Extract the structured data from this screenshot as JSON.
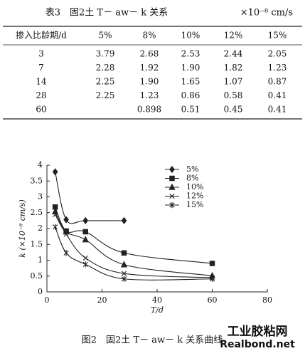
{
  "table": {
    "title": "表3　固2土 T－ aw－ k 关系",
    "unit": "×10⁻⁸ cm/s",
    "header": [
      "掺入比龄期/d",
      "5%",
      "8%",
      "10%",
      "12%",
      "15%"
    ],
    "rows": [
      [
        "3",
        "3.79",
        "2.68",
        "2.53",
        "2.44",
        "2.05"
      ],
      [
        "7",
        "2.28",
        "1.92",
        "1.90",
        "1.82",
        "1.23"
      ],
      [
        "14",
        "2.25",
        "1.90",
        "1.65",
        "1.07",
        "0.87"
      ],
      [
        "28",
        "2.25",
        "1.23",
        "0.86",
        "0.58",
        "0.41"
      ],
      [
        "60",
        null,
        "0.898",
        "0.51",
        "0.45",
        "0.41"
      ]
    ]
  },
  "chart_data": {
    "type": "line",
    "x_label": "T/d",
    "y_label": "k (×10⁻⁸ cm/s)",
    "x": [
      3,
      7,
      14,
      28,
      60
    ],
    "xlim": [
      0,
      80
    ],
    "xticks": [
      0,
      20,
      40,
      60,
      80
    ],
    "ylim": [
      0,
      4
    ],
    "yticks": [
      0,
      0.5,
      1,
      1.5,
      2,
      2.5,
      3,
      3.5,
      4
    ],
    "series": [
      {
        "name": "5%",
        "marker": "diamond",
        "color": "#222222",
        "values": [
          3.79,
          2.28,
          2.25,
          2.25,
          null
        ]
      },
      {
        "name": "8%",
        "marker": "square",
        "color": "#222222",
        "values": [
          2.68,
          1.92,
          1.9,
          1.23,
          0.898
        ]
      },
      {
        "name": "10%",
        "marker": "triangle",
        "color": "#222222",
        "values": [
          2.53,
          1.9,
          1.65,
          0.86,
          0.51
        ]
      },
      {
        "name": "12%",
        "marker": "x",
        "color": "#222222",
        "values": [
          2.44,
          1.82,
          1.07,
          0.58,
          0.45
        ]
      },
      {
        "name": "15%",
        "marker": "asterisk",
        "color": "#222222",
        "values": [
          2.05,
          1.23,
          0.87,
          0.41,
          0.41
        ]
      }
    ]
  },
  "caption": "图2　固2土 T－ aw－ k 关系曲线",
  "watermark": {
    "cn": "工业胶粘网",
    "en": "Realbond.net"
  }
}
